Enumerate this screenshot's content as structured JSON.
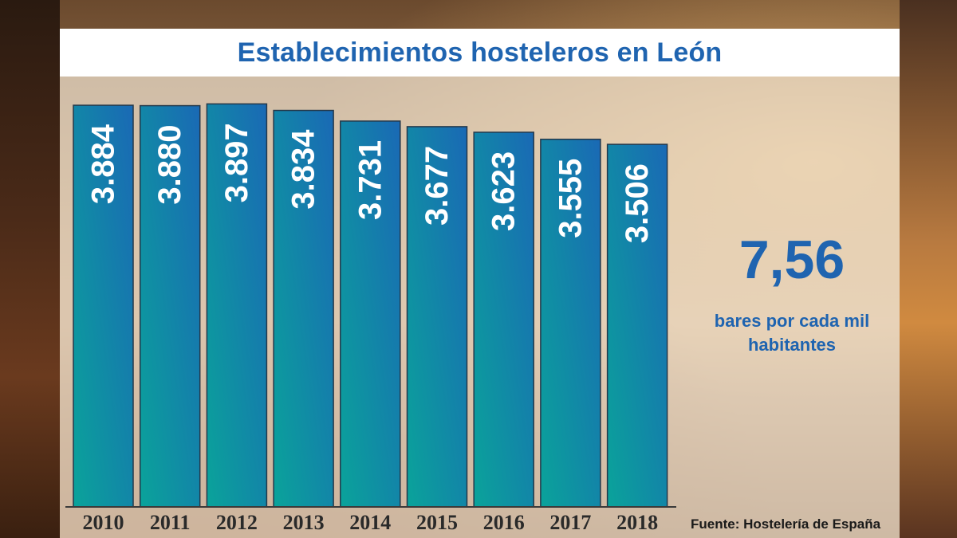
{
  "chart_data": {
    "type": "bar",
    "title": "Establecimientos hosteleros en León",
    "categories": [
      "2010",
      "2011",
      "2012",
      "2013",
      "2014",
      "2015",
      "2016",
      "2017",
      "2018"
    ],
    "values": [
      3884,
      3880,
      3897,
      3834,
      3731,
      3677,
      3623,
      3555,
      3506
    ],
    "value_labels": [
      "3.884",
      "3.880",
      "3.897",
      "3.834",
      "3.731",
      "3.677",
      "3.623",
      "3.555",
      "3.506"
    ],
    "ylim": [
      0,
      4000
    ],
    "grid": false,
    "xlabel": "",
    "ylabel": ""
  },
  "highlight": {
    "value": "7,56",
    "line1": "bares por cada mil",
    "line2": "habitantes"
  },
  "source": "Fuente: Hostelería de España",
  "colors": {
    "bar_top": "#1a69b5",
    "bar_bottom": "#0aa39a",
    "accent": "#1f64b0"
  }
}
